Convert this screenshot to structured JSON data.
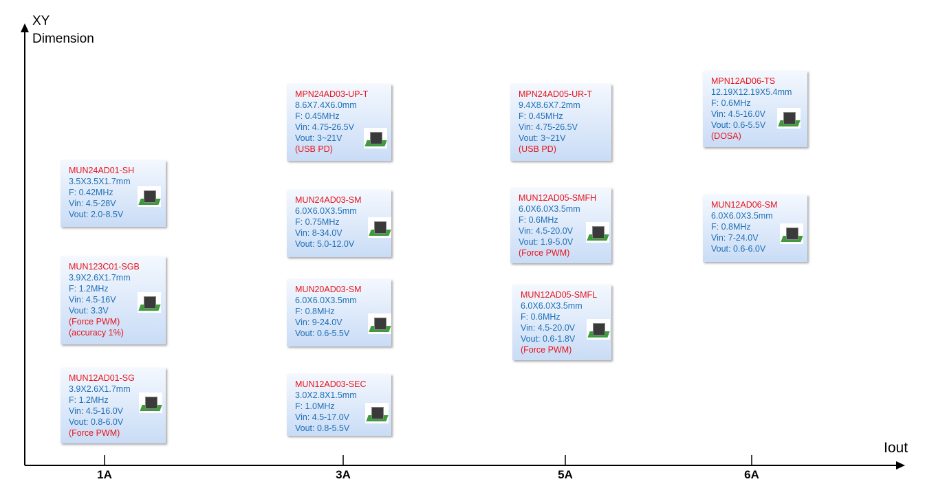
{
  "y_axis": {
    "label_lines": [
      "XY",
      "Dimension"
    ]
  },
  "x_axis": {
    "label": "Iout",
    "ticks": [
      "1A",
      "3A",
      "5A",
      "6A"
    ]
  },
  "cards": [
    {
      "name": "MUN24AD01-SH",
      "specs": [
        "3.5X3.5X1.7mm",
        "F: 0.42MHz",
        "Vin: 4.5-28V",
        "Vout: 2.0-8.5V"
      ],
      "notes": []
    },
    {
      "name": "MUN123C01-SGB",
      "specs": [
        "3.9X2.6X1.7mm",
        "F: 1.2MHz",
        "Vin: 4.5-16V",
        "Vout: 3.3V"
      ],
      "notes": [
        "(Force PWM)",
        "(accuracy 1%)"
      ]
    },
    {
      "name": "MUN12AD01-SG",
      "specs": [
        "3.9X2.6X1.7mm",
        "F: 1.2MHz",
        "Vin: 4.5-16.0V",
        "Vout: 0.8-6.0V"
      ],
      "notes": [
        "(Force PWM)"
      ]
    },
    {
      "name": "MPN24AD03-UP-T",
      "specs": [
        "8.6X7.4X6.0mm",
        "F: 0.45MHz",
        "Vin: 4.75-26.5V",
        "Vout: 3~21V"
      ],
      "notes": [
        "(USB PD)"
      ]
    },
    {
      "name": "MUN24AD03-SM",
      "specs": [
        "6.0X6.0X3.5mm",
        "F: 0.75MHz",
        "Vin: 8-34.0V",
        "Vout: 5.0-12.0V"
      ],
      "notes": []
    },
    {
      "name": "MUN20AD03-SM",
      "specs": [
        "6.0X6.0X3.5mm",
        "F: 0.8MHz",
        "Vin: 9-24.0V",
        "Vout: 0.6-5.5V"
      ],
      "notes": []
    },
    {
      "name": "MUN12AD03-SEC",
      "specs": [
        "3.0X2.8X1.5mm",
        "F: 1.0MHz",
        "Vin: 4.5-17.0V",
        "Vout: 0.8-5.5V"
      ],
      "notes": []
    },
    {
      "name": "MPN24AD05-UR-T",
      "specs": [
        "9.4X8.6X7.2mm",
        "F: 0.45MHz",
        "Vin: 4.75-26.5V",
        "Vout: 3~21V"
      ],
      "notes": [
        "(USB PD)"
      ]
    },
    {
      "name": "MUN12AD05-SMFH",
      "specs": [
        "6.0X6.0X3.5mm",
        "F: 0.6MHz",
        "Vin: 4.5-20.0V",
        "Vout: 1.9-5.0V"
      ],
      "notes": [
        "(Force PWM)"
      ]
    },
    {
      "name": "MUN12AD05-SMFL",
      "specs": [
        "6.0X6.0X3.5mm",
        "F: 0.6MHz",
        "Vin: 4.5-20.0V",
        "Vout: 0.6-1.8V"
      ],
      "notes": [
        "(Force PWM)"
      ]
    },
    {
      "name": "MPN12AD06-TS",
      "specs": [
        "12.19X12.19X5.4mm",
        "F: 0.6MHz",
        "Vin: 4.5-16.0V",
        "Vout: 0.6-5.5V"
      ],
      "notes": [
        "(DOSA)"
      ]
    },
    {
      "name": "MUN12AD06-SM",
      "specs": [
        "6.0X6.0X3.5mm",
        "F: 0.8MHz",
        "Vin: 7-24.0V",
        "Vout: 0.6-6.0V"
      ],
      "notes": []
    }
  ]
}
